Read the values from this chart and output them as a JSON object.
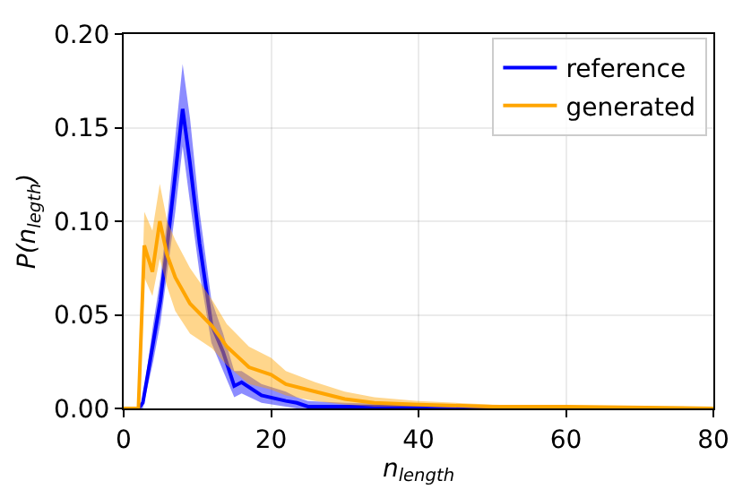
{
  "chart_data": {
    "type": "line",
    "xlabel": "n$_{length}$",
    "ylabel": "P(n$_{legth}$)",
    "xlim": [
      0,
      80
    ],
    "xticks": [
      0,
      20,
      40,
      60,
      80
    ],
    "ylim": [
      0,
      0.2
    ],
    "yticks": [
      {
        "value": 0,
        "label": "0.00"
      },
      {
        "value": 0.05,
        "label": "0.05"
      },
      {
        "value": 0.1,
        "label": "0.10"
      },
      {
        "value": 0.15,
        "label": "0.15"
      },
      {
        "value": 0.2,
        "label": "0.20"
      }
    ],
    "grid": true,
    "legend": "top right",
    "series": [
      {
        "name": "reference",
        "color": "#0000ff",
        "x": [
          0,
          2,
          2.6,
          4,
          5,
          6,
          7,
          8,
          9,
          10.3,
          11.9,
          13.5,
          15,
          16,
          18.7,
          22,
          23.5,
          25,
          30,
          40,
          50,
          80
        ],
        "values": [
          0,
          0,
          0.003,
          0.035,
          0.058,
          0.09,
          0.125,
          0.16,
          0.131,
          0.088,
          0.045,
          0.03,
          0.012,
          0.014,
          0.007,
          0.004,
          0.003,
          0.001,
          0.001,
          0.001,
          0,
          0
        ],
        "upper": [
          0,
          0,
          0.005,
          0.045,
          0.07,
          0.105,
          0.145,
          0.184,
          0.155,
          0.105,
          0.058,
          0.04,
          0.02,
          0.02,
          0.013,
          0.009,
          0.006,
          0.004,
          0.003,
          0.002,
          0.001,
          0
        ],
        "lower": [
          0,
          0,
          0,
          0.025,
          0.046,
          0.075,
          0.105,
          0.14,
          0.11,
          0.072,
          0.035,
          0.02,
          0.006,
          0.008,
          0.003,
          0.001,
          0,
          0,
          0,
          0,
          0,
          0
        ]
      },
      {
        "name": "generated",
        "color": "#ffa500",
        "x": [
          0,
          2,
          2.8,
          3.9,
          4.9,
          5.9,
          7,
          9,
          12,
          14,
          17,
          20,
          22,
          26,
          30,
          34,
          40,
          50,
          60,
          80
        ],
        "values": [
          0,
          0,
          0.087,
          0.073,
          0.1,
          0.082,
          0.07,
          0.056,
          0.044,
          0.033,
          0.022,
          0.018,
          0.013,
          0.009,
          0.005,
          0.003,
          0.002,
          0.001,
          0.001,
          0
        ],
        "upper": [
          0,
          0,
          0.105,
          0.095,
          0.12,
          0.1,
          0.09,
          0.075,
          0.058,
          0.045,
          0.033,
          0.027,
          0.02,
          0.014,
          0.009,
          0.006,
          0.004,
          0.002,
          0.001,
          0.001
        ],
        "lower": [
          0,
          0,
          0.07,
          0.06,
          0.08,
          0.065,
          0.052,
          0.04,
          0.032,
          0.023,
          0.013,
          0.01,
          0.007,
          0.004,
          0.002,
          0.001,
          0.001,
          0,
          0,
          0
        ]
      }
    ]
  }
}
